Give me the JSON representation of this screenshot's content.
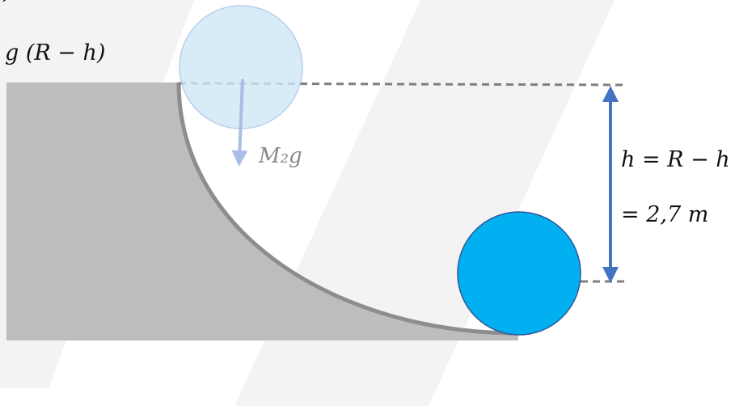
{
  "labels": {
    "top_fragment": "h)",
    "potential_term": "g (R − h)",
    "weight_force": "M₂g",
    "height_equation": "h = R − h",
    "height_value": "= 2,7 m"
  },
  "colors": {
    "watermark": "#f3f3f3",
    "track": "#bdbdbd",
    "track_edge": "#8d8d8d",
    "ball_ghost_fill": "#cfe8f6",
    "ball_ghost_stroke": "#a9c1e8",
    "ball_fill": "#00b0f0",
    "ball_stroke": "#2f5597",
    "arrow_weight": "#a9bde6",
    "arrow_height": "#4472c4",
    "dashed_line": "#7f7f7f"
  }
}
